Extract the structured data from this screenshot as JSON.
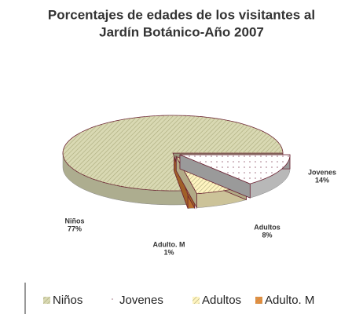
{
  "chart_data": {
    "type": "pie3d",
    "title": "Porcentajes de edades de los visitantes al Jardín Botánico-Año 2007",
    "title_lines": [
      "Porcentajes de edades de los visitantes al",
      "Jardín Botánico-Año 2007"
    ],
    "categories": [
      "Niños",
      "Jovenes",
      "Adultos",
      "Adulto. M"
    ],
    "values": [
      77,
      14,
      8,
      1
    ],
    "value_labels": [
      "77%",
      "14%",
      "8%",
      "1%"
    ],
    "colors": [
      "#d9d9b3",
      "#ffffff",
      "#fff4c0",
      "#e58a3a"
    ],
    "legend": "bottom"
  }
}
